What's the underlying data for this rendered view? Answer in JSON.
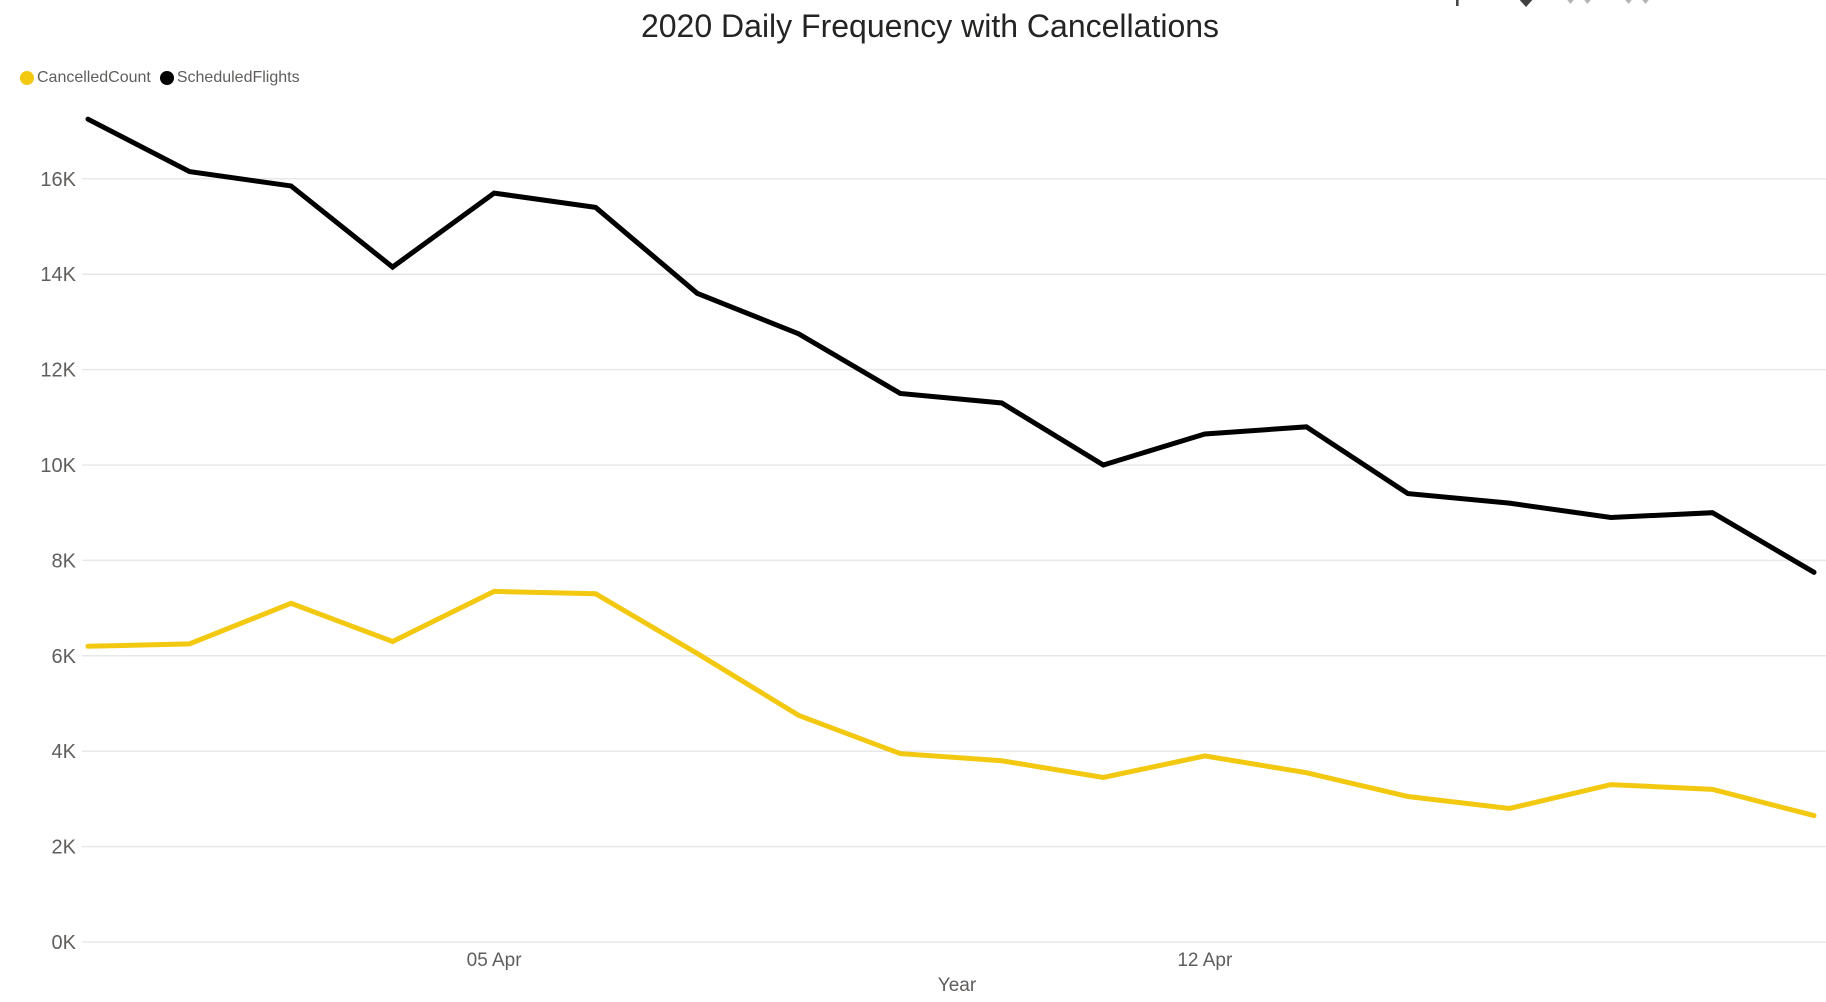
{
  "title": "2020 Daily Frequency with Cancellations",
  "header": {
    "icons": [
      {
        "name": "drill-up-icon",
        "glyph": "arrow-up-partial"
      },
      {
        "name": "drill-down-icon",
        "glyph": "caret-down"
      },
      {
        "name": "go-to-next-level-icon",
        "glyph": "double-caret-down"
      },
      {
        "name": "expand-all-icon",
        "glyph": "double-caret-down"
      }
    ]
  },
  "legend": {
    "items": [
      {
        "label": "CancelledCount",
        "color": "#F2C811"
      },
      {
        "label": "ScheduledFlights",
        "color": "#000000"
      }
    ]
  },
  "colors": {
    "cancelled_line": "#F2C811",
    "scheduled_line": "#000000",
    "gridline": "#E8E8E8",
    "axis_text": "#605E5C",
    "title_text": "#252423"
  },
  "chart_data": {
    "type": "line",
    "title": "2020 Daily Frequency with Cancellations",
    "xlabel": "Year",
    "ylabel": "",
    "x": [
      "01 Apr",
      "02 Apr",
      "03 Apr",
      "04 Apr",
      "05 Apr",
      "06 Apr",
      "07 Apr",
      "08 Apr",
      "09 Apr",
      "10 Apr",
      "11 Apr",
      "12 Apr",
      "13 Apr",
      "14 Apr",
      "15 Apr",
      "16 Apr",
      "17 Apr",
      "18 Apr"
    ],
    "series": [
      {
        "name": "CancelledCount",
        "color": "#F2C811",
        "values": [
          6200,
          6250,
          7100,
          6300,
          7350,
          7300,
          6050,
          4750,
          3950,
          3800,
          3450,
          3900,
          3550,
          3050,
          2800,
          3300,
          3200,
          2650
        ]
      },
      {
        "name": "ScheduledFlights",
        "color": "#000000",
        "values": [
          17250,
          16150,
          15850,
          14150,
          15700,
          15400,
          13600,
          12750,
          11500,
          11300,
          10000,
          10650,
          10800,
          9400,
          9200,
          8900,
          9000,
          7750
        ]
      }
    ],
    "ylim": [
      0,
      17600
    ],
    "yticks": [
      {
        "value": 0,
        "label": "0K"
      },
      {
        "value": 2000,
        "label": "2K"
      },
      {
        "value": 4000,
        "label": "4K"
      },
      {
        "value": 6000,
        "label": "6K"
      },
      {
        "value": 8000,
        "label": "8K"
      },
      {
        "value": 10000,
        "label": "10K"
      },
      {
        "value": 12000,
        "label": "12K"
      },
      {
        "value": 14000,
        "label": "14K"
      },
      {
        "value": 16000,
        "label": "16K"
      }
    ],
    "xticks": [
      {
        "index": 4,
        "label": "05 Apr"
      },
      {
        "index": 11,
        "label": "12 Apr"
      }
    ],
    "grid": true,
    "legend_position": "top-left"
  }
}
